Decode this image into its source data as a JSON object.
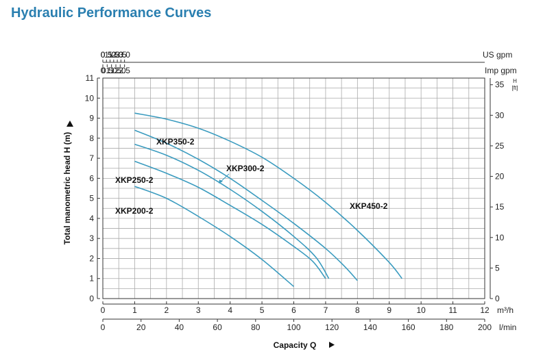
{
  "title": "Hydraulic Performance Curves",
  "chart_data": {
    "type": "line",
    "title": "Hydraulic Performance Curves",
    "xlabel": "Capacity Q",
    "ylabel": "Total manometric head H (m)",
    "xlim": [
      0,
      12
    ],
    "ylim": [
      0,
      11
    ],
    "grid": true,
    "axes": {
      "m3h": {
        "unit": "m³/h",
        "ticks": [
          0,
          1,
          2,
          3,
          4,
          5,
          6,
          7,
          8,
          9,
          10,
          11,
          12
        ]
      },
      "lmin": {
        "unit": "l/min",
        "ticks": [
          0,
          20,
          40,
          60,
          80,
          100,
          120,
          140,
          160,
          180,
          200
        ]
      },
      "usgpm": {
        "unit": "US gpm",
        "ticks": [
          "0",
          "0.5",
          "1.0",
          "1.5",
          "2.0",
          "2.5",
          "3.0"
        ]
      },
      "impgpm": {
        "unit": "Imp gpm",
        "ticks": [
          "0",
          "0.5",
          "1.0",
          "1.5",
          "2.0",
          "2.5"
        ]
      },
      "head_m": {
        "unit": "",
        "ticks": [
          0,
          1,
          2,
          3,
          4,
          5,
          6,
          7,
          8,
          9,
          10,
          11
        ]
      },
      "head_ft": {
        "unit": "H [ft]",
        "unit_top": "H",
        "unit_bottom": "[ft]",
        "ticks": [
          0,
          5,
          10,
          15,
          20,
          25,
          30,
          35
        ]
      }
    },
    "series": [
      {
        "name": "XKP450-2",
        "x": [
          1,
          2,
          3,
          4,
          5,
          6,
          7,
          8,
          9,
          9.4
        ],
        "y": [
          9.25,
          8.95,
          8.5,
          7.85,
          7.05,
          6.0,
          4.8,
          3.4,
          1.8,
          1.0
        ]
      },
      {
        "name": "XKP350-2",
        "x": [
          1,
          2,
          3,
          4,
          5,
          6,
          7,
          7.6,
          8.0
        ],
        "y": [
          8.4,
          7.75,
          6.95,
          6.0,
          4.9,
          3.75,
          2.5,
          1.6,
          0.9
        ]
      },
      {
        "name": "XKP300-2",
        "x": [
          1,
          2,
          3,
          4,
          5,
          6,
          6.7,
          7.1
        ],
        "y": [
          7.7,
          7.15,
          6.4,
          5.45,
          4.35,
          3.1,
          2.05,
          1.0
        ]
      },
      {
        "name": "XKP250-2",
        "x": [
          1,
          2,
          3,
          4,
          5,
          6,
          6.6,
          7.0
        ],
        "y": [
          6.85,
          6.25,
          5.55,
          4.65,
          3.7,
          2.6,
          1.85,
          1.0
        ]
      },
      {
        "name": "XKP200-2",
        "x": [
          1,
          2,
          3,
          4,
          5,
          6.0
        ],
        "y": [
          5.6,
          5.0,
          4.1,
          3.1,
          1.95,
          0.6
        ]
      }
    ]
  }
}
